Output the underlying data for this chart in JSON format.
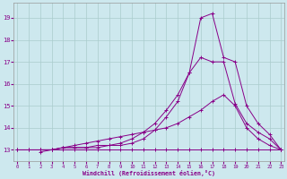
{
  "xlabel": "Windchill (Refroidissement éolien,°C)",
  "background_color": "#cde8ee",
  "grid_color": "#aacccc",
  "line_color": "#880088",
  "series": [
    {
      "x": [
        0,
        1,
        2,
        3,
        4,
        5,
        6,
        7,
        8,
        9,
        10,
        11,
        12,
        13,
        14,
        15,
        16,
        17,
        18,
        19,
        20,
        21,
        22,
        23
      ],
      "y": [
        13,
        13,
        13,
        13,
        13,
        13,
        13,
        13,
        13,
        13,
        13,
        13,
        13,
        13,
        13,
        13,
        13,
        13,
        13,
        13,
        13,
        13,
        13,
        13
      ]
    },
    {
      "x": [
        0,
        1,
        2,
        3,
        4,
        5,
        6,
        7,
        8,
        9,
        10,
        11,
        12,
        13,
        14,
        15,
        16,
        17,
        18,
        19,
        20,
        21,
        22,
        23
      ],
      "y": [
        13,
        13,
        13,
        13,
        13.1,
        13.2,
        13.3,
        13.4,
        13.5,
        13.6,
        13.7,
        13.8,
        13.9,
        14.0,
        14.2,
        14.5,
        14.8,
        15.2,
        15.5,
        15.0,
        14.0,
        13.5,
        13.2,
        13.0
      ]
    },
    {
      "x": [
        2,
        3,
        4,
        5,
        6,
        7,
        8,
        9,
        10,
        11,
        12,
        13,
        14,
        15,
        16,
        17,
        18,
        19,
        20,
        21,
        22,
        23
      ],
      "y": [
        13.0,
        13.0,
        13.1,
        13.1,
        13.1,
        13.1,
        13.2,
        13.3,
        13.5,
        13.8,
        14.2,
        14.8,
        15.5,
        16.5,
        17.2,
        17.0,
        17.0,
        15.1,
        14.2,
        13.8,
        13.5,
        13.0
      ]
    },
    {
      "x": [
        2,
        3,
        4,
        5,
        6,
        7,
        8,
        9,
        10,
        11,
        12,
        13,
        14,
        15,
        16,
        17,
        18,
        19,
        20,
        21,
        22,
        23
      ],
      "y": [
        12.9,
        13.0,
        13.1,
        13.1,
        13.1,
        13.2,
        13.2,
        13.2,
        13.3,
        13.5,
        13.9,
        14.5,
        15.2,
        16.5,
        19.0,
        19.2,
        17.2,
        17.0,
        15.0,
        14.2,
        13.7,
        13.0
      ]
    }
  ],
  "xlim": [
    -0.3,
    23.3
  ],
  "ylim": [
    12.5,
    19.7
  ],
  "yticks": [
    13,
    14,
    15,
    16,
    17,
    18,
    19
  ],
  "xticks": [
    0,
    1,
    2,
    3,
    4,
    5,
    6,
    7,
    8,
    9,
    10,
    11,
    12,
    13,
    14,
    15,
    16,
    17,
    18,
    19,
    20,
    21,
    22,
    23
  ],
  "figsize": [
    3.2,
    2.0
  ],
  "dpi": 100
}
